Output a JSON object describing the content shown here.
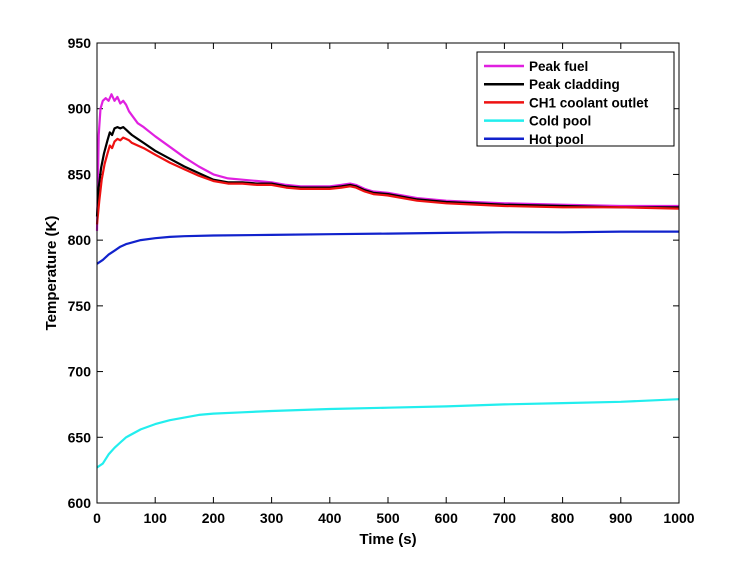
{
  "chart_data": {
    "type": "line",
    "title": "",
    "xlabel": "Time (s)",
    "ylabel": "Temperature (K)",
    "xlim": [
      0,
      1000
    ],
    "ylim": [
      600,
      950
    ],
    "xticks": [
      0,
      100,
      200,
      300,
      400,
      500,
      600,
      700,
      800,
      900,
      1000
    ],
    "yticks": [
      600,
      650,
      700,
      750,
      800,
      850,
      900,
      950
    ],
    "grid": false,
    "legend_position": "top-right",
    "series": [
      {
        "name": "Peak fuel",
        "color": "#e020e0",
        "points": [
          [
            0,
            807
          ],
          [
            3,
            880
          ],
          [
            6,
            900
          ],
          [
            10,
            906
          ],
          [
            15,
            908
          ],
          [
            20,
            906
          ],
          [
            25,
            911
          ],
          [
            30,
            906
          ],
          [
            35,
            909
          ],
          [
            40,
            904
          ],
          [
            45,
            906
          ],
          [
            50,
            903
          ],
          [
            55,
            898
          ],
          [
            60,
            895
          ],
          [
            70,
            889
          ],
          [
            80,
            886
          ],
          [
            100,
            879
          ],
          [
            125,
            871
          ],
          [
            150,
            863
          ],
          [
            175,
            856
          ],
          [
            200,
            850
          ],
          [
            225,
            847
          ],
          [
            250,
            846
          ],
          [
            275,
            845
          ],
          [
            300,
            844
          ],
          [
            325,
            842
          ],
          [
            350,
            841
          ],
          [
            375,
            841
          ],
          [
            400,
            841
          ],
          [
            420,
            842
          ],
          [
            435,
            843
          ],
          [
            445,
            842
          ],
          [
            460,
            839
          ],
          [
            475,
            837
          ],
          [
            500,
            836
          ],
          [
            550,
            832
          ],
          [
            600,
            830
          ],
          [
            700,
            828
          ],
          [
            800,
            827
          ],
          [
            900,
            826
          ],
          [
            1000,
            826
          ]
        ]
      },
      {
        "name": "Peak cladding",
        "color": "#000000",
        "points": [
          [
            0,
            818
          ],
          [
            3,
            840
          ],
          [
            7,
            855
          ],
          [
            12,
            866
          ],
          [
            18,
            876
          ],
          [
            22,
            882
          ],
          [
            26,
            880
          ],
          [
            30,
            885
          ],
          [
            35,
            886
          ],
          [
            40,
            885
          ],
          [
            45,
            886
          ],
          [
            50,
            884
          ],
          [
            55,
            882
          ],
          [
            60,
            880
          ],
          [
            70,
            877
          ],
          [
            80,
            874
          ],
          [
            100,
            868
          ],
          [
            125,
            862
          ],
          [
            150,
            856
          ],
          [
            175,
            851
          ],
          [
            200,
            846
          ],
          [
            225,
            844
          ],
          [
            250,
            844
          ],
          [
            275,
            843
          ],
          [
            300,
            843
          ],
          [
            325,
            841
          ],
          [
            350,
            840
          ],
          [
            375,
            840
          ],
          [
            400,
            840
          ],
          [
            420,
            841
          ],
          [
            435,
            842
          ],
          [
            445,
            841
          ],
          [
            460,
            838
          ],
          [
            475,
            836
          ],
          [
            500,
            835
          ],
          [
            550,
            831
          ],
          [
            600,
            829
          ],
          [
            700,
            827
          ],
          [
            800,
            826
          ],
          [
            900,
            825
          ],
          [
            1000,
            825
          ]
        ]
      },
      {
        "name": "CH1 coolant outlet",
        "color": "#ee1111",
        "points": [
          [
            0,
            812
          ],
          [
            4,
            830
          ],
          [
            8,
            846
          ],
          [
            13,
            858
          ],
          [
            18,
            866
          ],
          [
            22,
            872
          ],
          [
            26,
            870
          ],
          [
            30,
            875
          ],
          [
            35,
            877
          ],
          [
            40,
            876
          ],
          [
            45,
            878
          ],
          [
            50,
            877
          ],
          [
            55,
            876
          ],
          [
            60,
            874
          ],
          [
            70,
            872
          ],
          [
            80,
            870
          ],
          [
            100,
            865
          ],
          [
            125,
            859
          ],
          [
            150,
            854
          ],
          [
            175,
            849
          ],
          [
            200,
            845
          ],
          [
            225,
            843
          ],
          [
            250,
            843
          ],
          [
            275,
            842
          ],
          [
            300,
            842
          ],
          [
            325,
            840
          ],
          [
            350,
            839
          ],
          [
            375,
            839
          ],
          [
            400,
            839
          ],
          [
            420,
            840
          ],
          [
            435,
            841
          ],
          [
            445,
            840
          ],
          [
            460,
            837
          ],
          [
            475,
            835
          ],
          [
            500,
            834
          ],
          [
            550,
            830
          ],
          [
            600,
            828
          ],
          [
            700,
            826
          ],
          [
            800,
            825
          ],
          [
            900,
            825
          ],
          [
            1000,
            824
          ]
        ]
      },
      {
        "name": "Cold pool",
        "color": "#22eeee",
        "points": [
          [
            0,
            627
          ],
          [
            10,
            630
          ],
          [
            20,
            637
          ],
          [
            30,
            642
          ],
          [
            40,
            646
          ],
          [
            50,
            650
          ],
          [
            75,
            656
          ],
          [
            100,
            660
          ],
          [
            125,
            663
          ],
          [
            150,
            665
          ],
          [
            175,
            667
          ],
          [
            200,
            668
          ],
          [
            250,
            669
          ],
          [
            300,
            670
          ],
          [
            400,
            671.5
          ],
          [
            500,
            672.5
          ],
          [
            600,
            673.5
          ],
          [
            700,
            675
          ],
          [
            800,
            676
          ],
          [
            900,
            677
          ],
          [
            1000,
            679
          ]
        ]
      },
      {
        "name": "Hot pool",
        "color": "#1122cc",
        "points": [
          [
            0,
            782
          ],
          [
            10,
            785
          ],
          [
            20,
            789
          ],
          [
            30,
            792
          ],
          [
            40,
            795
          ],
          [
            50,
            797
          ],
          [
            75,
            800
          ],
          [
            100,
            801.5
          ],
          [
            125,
            802.5
          ],
          [
            150,
            803
          ],
          [
            200,
            803.5
          ],
          [
            300,
            804
          ],
          [
            400,
            804.5
          ],
          [
            500,
            805
          ],
          [
            600,
            805.5
          ],
          [
            700,
            806
          ],
          [
            800,
            806
          ],
          [
            900,
            806.5
          ],
          [
            1000,
            806.5
          ]
        ]
      }
    ]
  }
}
